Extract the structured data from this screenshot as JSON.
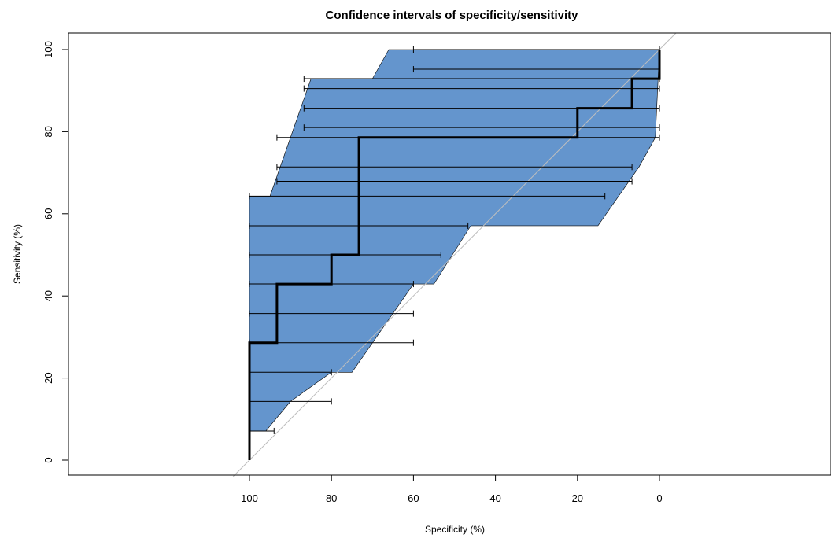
{
  "chart_data": {
    "type": "line",
    "title": "Confidence intervals of specificity/sensitivity",
    "xlabel": "Specificity (%)",
    "ylabel": "Sensitivity (%)",
    "x_reversed": true,
    "xlim": [
      100,
      0
    ],
    "ylim": [
      0,
      100
    ],
    "x_ticks": [
      "100",
      "80",
      "60",
      "40",
      "20",
      "0"
    ],
    "y_ticks": [
      "0",
      "20",
      "40",
      "60",
      "80",
      "100"
    ],
    "colors": {
      "band": "#6495CD",
      "roc": "#000000",
      "diagonal": "#BEBEBE"
    },
    "ci_band": {
      "upper": [
        {
          "se": 7.1,
          "sp": 100
        },
        {
          "se": 64.3,
          "sp": 100
        },
        {
          "se": 64.3,
          "sp": 95
        },
        {
          "se": 92.9,
          "sp": 85
        },
        {
          "se": 92.9,
          "sp": 70
        },
        {
          "se": 100,
          "sp": 66
        },
        {
          "se": 100,
          "sp": 0
        }
      ],
      "lower": [
        {
          "se": 100,
          "sp": 0
        },
        {
          "se": 78.6,
          "sp": 1
        },
        {
          "se": 71.4,
          "sp": 5
        },
        {
          "se": 57.1,
          "sp": 15
        },
        {
          "se": 57.1,
          "sp": 46
        },
        {
          "se": 42.9,
          "sp": 55
        },
        {
          "se": 42.9,
          "sp": 60
        },
        {
          "se": 21.4,
          "sp": 75
        },
        {
          "se": 21.4,
          "sp": 80
        },
        {
          "se": 14.3,
          "sp": 90
        },
        {
          "se": 7.1,
          "sp": 96
        },
        {
          "se": 7.1,
          "sp": 100
        }
      ]
    },
    "intervals": [
      {
        "se": 7.1,
        "sp_low": 94,
        "sp_high": 100
      },
      {
        "se": 14.3,
        "sp_low": 80,
        "sp_high": 100
      },
      {
        "se": 21.4,
        "sp_low": 80,
        "sp_high": 100
      },
      {
        "se": 28.6,
        "sp_low": 60,
        "sp_high": 100
      },
      {
        "se": 35.7,
        "sp_low": 60,
        "sp_high": 100
      },
      {
        "se": 42.9,
        "sp_low": 60,
        "sp_high": 100
      },
      {
        "se": 50.0,
        "sp_low": 53.3,
        "sp_high": 100
      },
      {
        "se": 57.1,
        "sp_low": 46.7,
        "sp_high": 100
      },
      {
        "se": 64.3,
        "sp_low": 13.3,
        "sp_high": 100
      },
      {
        "se": 71.4,
        "sp_low": 6.7,
        "sp_high": 93.3
      },
      {
        "se": 78.6,
        "sp_low": 0,
        "sp_high": 93.3
      },
      {
        "se": 85.7,
        "sp_low": 0,
        "sp_high": 86.7
      },
      {
        "se": 92.9,
        "sp_low": 0,
        "sp_high": 86.7
      },
      {
        "se": 100,
        "sp_low": 0,
        "sp_high": 60
      },
      {
        "se": 95.2,
        "sp_low": 0,
        "sp_high": 60
      },
      {
        "se": 90.5,
        "sp_low": 0,
        "sp_high": 86.7
      },
      {
        "se": 81.0,
        "sp_low": 0,
        "sp_high": 86.7
      },
      {
        "se": 67.9,
        "sp_low": 6.7,
        "sp_high": 93.3
      }
    ],
    "roc_curve": [
      {
        "sp": 100,
        "se": 0
      },
      {
        "sp": 100,
        "se": 28.6
      },
      {
        "sp": 93.3,
        "se": 28.6
      },
      {
        "sp": 93.3,
        "se": 42.9
      },
      {
        "sp": 80,
        "se": 42.9
      },
      {
        "sp": 80,
        "se": 50
      },
      {
        "sp": 73.3,
        "se": 50
      },
      {
        "sp": 73.3,
        "se": 78.6
      },
      {
        "sp": 20,
        "se": 78.6
      },
      {
        "sp": 20,
        "se": 85.7
      },
      {
        "sp": 6.7,
        "se": 85.7
      },
      {
        "sp": 6.7,
        "se": 92.9
      },
      {
        "sp": 0,
        "se": 92.9
      },
      {
        "sp": 0,
        "se": 100
      }
    ]
  }
}
